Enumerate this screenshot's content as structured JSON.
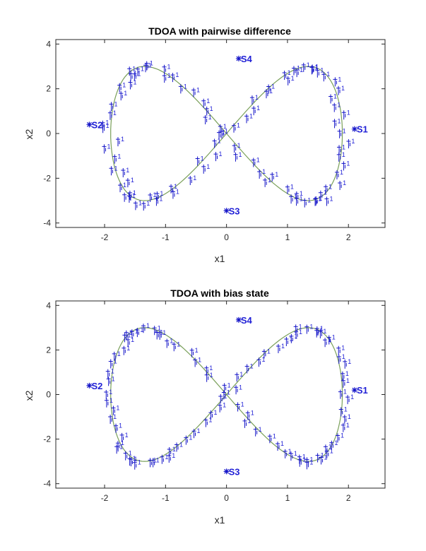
{
  "colors": {
    "estimate": "#1414c8",
    "truth": "#7aa05a",
    "truth_bottom": "#d07c3a",
    "axis": "#262626"
  },
  "chart_data": [
    {
      "type": "scatter",
      "title": "TDOA with pairwise difference",
      "xlabel": "x1",
      "ylabel": "x2",
      "xlim": [
        -2.8,
        2.6
      ],
      "ylim": [
        -4.2,
        4.2
      ],
      "xticks": [
        -2,
        -1,
        0,
        1,
        2
      ],
      "yticks": [
        -4,
        -2,
        0,
        2,
        4
      ],
      "xtick_labels": [
        "-2",
        "-1",
        "0",
        "1",
        "2"
      ],
      "ytick_labels": [
        "-4",
        "-2",
        "0",
        "2",
        "4"
      ],
      "grid": false,
      "trajectory": {
        "shape": "figure-eight",
        "x_amplitude": 1.9,
        "y_amplitude": 3.0,
        "points": 90,
        "noise": 0.15
      },
      "point_label": "1",
      "sensors": [
        {
          "name": "S1",
          "x": 2.1,
          "y": 0.2
        },
        {
          "name": "S2",
          "x": -2.25,
          "y": 0.4
        },
        {
          "name": "S3",
          "x": 0.0,
          "y": -3.45
        },
        {
          "name": "S4",
          "x": 0.2,
          "y": 3.35
        }
      ]
    },
    {
      "type": "scatter",
      "title": "TDOA with bias state",
      "xlabel": "x1",
      "ylabel": "x2",
      "xlim": [
        -2.8,
        2.6
      ],
      "ylim": [
        -4.2,
        4.2
      ],
      "xticks": [
        -2,
        -1,
        0,
        1,
        2
      ],
      "yticks": [
        -4,
        -2,
        0,
        2,
        4
      ],
      "xtick_labels": [
        "-2",
        "-1",
        "0",
        "1",
        "2"
      ],
      "ytick_labels": [
        "-4",
        "-2",
        "0",
        "2",
        "4"
      ],
      "grid": false,
      "trajectory": {
        "shape": "figure-eight",
        "x_amplitude": 1.9,
        "y_amplitude": 3.0,
        "points": 90,
        "noise": 0.1
      },
      "point_label": "1",
      "sensors": [
        {
          "name": "S1",
          "x": 2.1,
          "y": 0.2
        },
        {
          "name": "S2",
          "x": -2.25,
          "y": 0.4
        },
        {
          "name": "S3",
          "x": 0.0,
          "y": -3.45
        },
        {
          "name": "S4",
          "x": 0.2,
          "y": 3.35
        }
      ]
    }
  ]
}
